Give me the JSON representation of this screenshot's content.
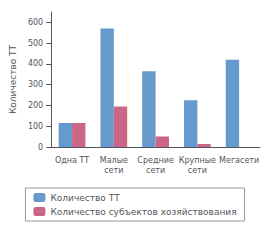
{
  "chart_data": {
    "type": "bar",
    "categories": [
      "Одна ТТ",
      "Малые\nсети",
      "Средние\nсети",
      "Крупные\nсети",
      "Мегасети"
    ],
    "series": [
      {
        "name": "Количество ТТ",
        "color": "#6699cc",
        "values": [
          115,
          570,
          365,
          225,
          420
        ]
      },
      {
        "name": "Количество субъектов хозяйствования",
        "color": "#cc6688",
        "values": [
          115,
          195,
          50,
          15,
          0
        ]
      }
    ],
    "ylabel": "Количество ТТ",
    "ylim": [
      0,
      650
    ],
    "yticks": [
      0,
      100,
      200,
      300,
      400,
      500,
      600
    ],
    "grid": false,
    "legend": "bottom"
  }
}
